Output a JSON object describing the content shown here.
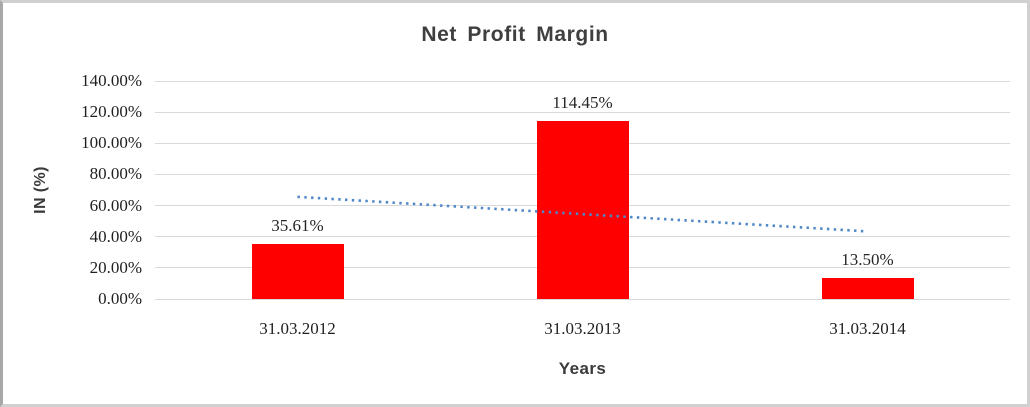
{
  "chart_data": {
    "type": "bar",
    "title": "Net Profit Margin",
    "xlabel": "Years",
    "ylabel": "IN (%)",
    "categories": [
      "31.03.2012",
      "31.03.2013",
      "31.03.2014"
    ],
    "values": [
      35.61,
      114.45,
      13.5
    ],
    "data_labels": [
      "35.61%",
      "114.45%",
      "13.50%"
    ],
    "ytick_labels": [
      "140.00%",
      "120.00%",
      "100.00%",
      "80.00%",
      "60.00%",
      "40.00%",
      "20.00%",
      "0.00%"
    ],
    "ylim": [
      0,
      140
    ],
    "ytick_step": 20,
    "grid": true,
    "legend": "none",
    "bar_color": "#ff0000",
    "gridline_color": "#d9d9d9",
    "trendline": {
      "style": "dotted",
      "color": "#4e87c8",
      "start_pct": 65.6,
      "end_pct": 43.4
    }
  }
}
